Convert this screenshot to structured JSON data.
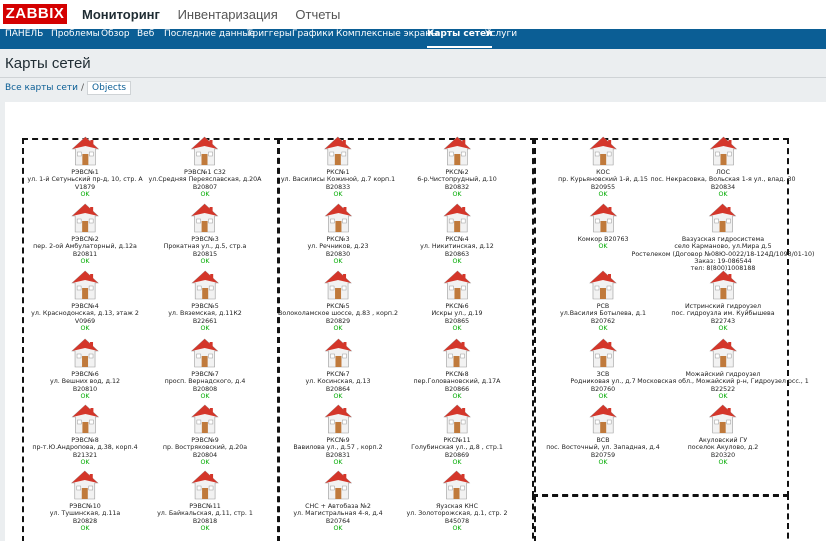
{
  "app": {
    "logo": "ZABBIX"
  },
  "top_menu": [
    {
      "label": "Мониторинг",
      "active": true
    },
    {
      "label": "Инвентаризация",
      "active": false
    },
    {
      "label": "Отчеты",
      "active": false
    }
  ],
  "sub_menu": [
    {
      "label": "ПАНЕЛЬ",
      "active": false
    },
    {
      "label": "Проблемы",
      "active": false
    },
    {
      "label": "Обзор",
      "active": false
    },
    {
      "label": "Веб",
      "active": false
    },
    {
      "label": "Последние данные",
      "active": false
    },
    {
      "label": "Триггеры",
      "active": false
    },
    {
      "label": "Графики",
      "active": false
    },
    {
      "label": "Комплексные экраны",
      "active": false
    },
    {
      "label": "Карты сетей",
      "active": true
    },
    {
      "label": "Услуги",
      "active": false
    }
  ],
  "page_title": "Карты сетей",
  "breadcrumb": {
    "root": "Все карты сети",
    "separator": "/",
    "current": "Objects"
  },
  "colors": {
    "ok": "#00aa00",
    "house_roof": "#d4362a",
    "brand": "#d40000",
    "nav": "#0b5e95"
  },
  "map_nodes": [
    {
      "lines": [
        "РЭВС№1",
        "ул. 1-й Сетуньский пр-д, 10, стр. А",
        "V1879"
      ],
      "status": "OK"
    },
    {
      "lines": [
        "РЭВС№1 С32",
        "ул.Средняя Переяславская, д.20А",
        "B20807"
      ],
      "status": "OK"
    },
    {
      "lines": [
        "РЭВС№2",
        "пер. 2-ой Амбулаторный, д.12а",
        "B20811"
      ],
      "status": "OK"
    },
    {
      "lines": [
        "РЭВС№3",
        "Прокатная ул., д.5, стр.а",
        "B20815"
      ],
      "status": "OK"
    },
    {
      "lines": [
        "РЭВС№4",
        "ул. Краснодонская, д.13, этаж 2",
        "V0969"
      ],
      "status": "OK"
    },
    {
      "lines": [
        "РЭВС№5",
        "ул. Вяземская, д.11К2",
        "B22661"
      ],
      "status": "OK"
    },
    {
      "lines": [
        "РЭВС№6",
        "ул. Вешних вод, д.12",
        "B20810"
      ],
      "status": "OK"
    },
    {
      "lines": [
        "РЭВС№7",
        "просп. Вернадского, д.4",
        "B20808"
      ],
      "status": "OK"
    },
    {
      "lines": [
        "РЭВС№8",
        "пр-т.Ю.Андропова, д.38, корп.4",
        "B21321"
      ],
      "status": "OK"
    },
    {
      "lines": [
        "РЭВС№9",
        "пр. Востряковский, д.20а",
        "B20804"
      ],
      "status": "OK"
    },
    {
      "lines": [
        "РЭВС№10",
        "ул. Тушинская, д.11а",
        "B20828"
      ],
      "status": "OK"
    },
    {
      "lines": [
        "РЭВС№11",
        "ул. Байкальская, д.11, стр. 1",
        "B20818"
      ],
      "status": "OK"
    },
    {
      "lines": [
        "РКС№1",
        "ул. Василисы Кожиной, д.7 корп.1",
        "B20833"
      ],
      "status": "OK"
    },
    {
      "lines": [
        "РКС№2",
        "6-р.Чистопрудный, д.10",
        "B20832"
      ],
      "status": "OK"
    },
    {
      "lines": [
        "РКС№3",
        "ул. Речников, д.23",
        "B20830"
      ],
      "status": "OK"
    },
    {
      "lines": [
        "РКС№4",
        "ул. Никитинская, д.12",
        "B20863"
      ],
      "status": "OK"
    },
    {
      "lines": [
        "РКС№5",
        "Волоколамское шоссе, д.83 , корп.2",
        "B20829"
      ],
      "status": "OK"
    },
    {
      "lines": [
        "РКС№6",
        "Искры ул., д.19",
        "B20865"
      ],
      "status": "OK"
    },
    {
      "lines": [
        "РКС№7",
        "ул. Косинская, д.13",
        "B20864"
      ],
      "status": "OK"
    },
    {
      "lines": [
        "РКС№8",
        "пер.Головановский, д.17А",
        "B20866"
      ],
      "status": "OK"
    },
    {
      "lines": [
        "РКС№9",
        "Вавилова ул., д.57 , корп.2",
        "B20831"
      ],
      "status": "OK"
    },
    {
      "lines": [
        "РКС№11",
        "Голубинская ул., д.8 , стр.1",
        "B20869"
      ],
      "status": "OK"
    },
    {
      "lines": [
        "СНС + Автобаза №2",
        "ул. Магистральная 4-я, д.4",
        "B20764"
      ],
      "status": "OK"
    },
    {
      "lines": [
        "Яузская КНС",
        "ул. Золоторожская, д.1, стр. 2",
        "B45078"
      ],
      "status": "OK"
    },
    {
      "lines": [
        "КОС",
        "пр. Курьяновский 1-й, д.15",
        "B20955"
      ],
      "status": "OK"
    },
    {
      "lines": [
        "ЛОС",
        "пос. Некрасовка, Вольская 1-я ул., влад. 30",
        "B20834"
      ],
      "status": "OK"
    },
    {
      "lines": [
        "Комкор B20763"
      ],
      "status": "OK"
    },
    {
      "lines": [
        "Вазузская гидросистема",
        "село Карманово, ул.Мира д.5",
        "Ростелеком (Договор №08Ю-0022/18-124Д/1093/01-10)",
        "Заказ: 19-086544",
        "тел: 8(800)1008188"
      ],
      "status": ""
    },
    {
      "lines": [
        "РСВ",
        "ул.Василия Ботылева, д.1",
        "B20762"
      ],
      "status": "OK"
    },
    {
      "lines": [
        "Истринский гидроузел",
        "пос. гидроузла им. Куйбышева",
        "B22743"
      ],
      "status": "OK"
    },
    {
      "lines": [
        "ЗСВ",
        "Родниковая ул., д.7",
        "B20760"
      ],
      "status": "OK"
    },
    {
      "lines": [
        "Можайский гидроузел",
        "Московская обл., Можайский р-н, Гидроузел рсс., 1",
        "B22522"
      ],
      "status": "OK"
    },
    {
      "lines": [
        "ВСВ",
        "пос. Восточный, ул. Западная, д.4",
        "B20759"
      ],
      "status": "OK"
    },
    {
      "lines": [
        "Акуловский ГУ",
        "поселок Акулово, д.2",
        "B20320"
      ],
      "status": "OK"
    }
  ]
}
